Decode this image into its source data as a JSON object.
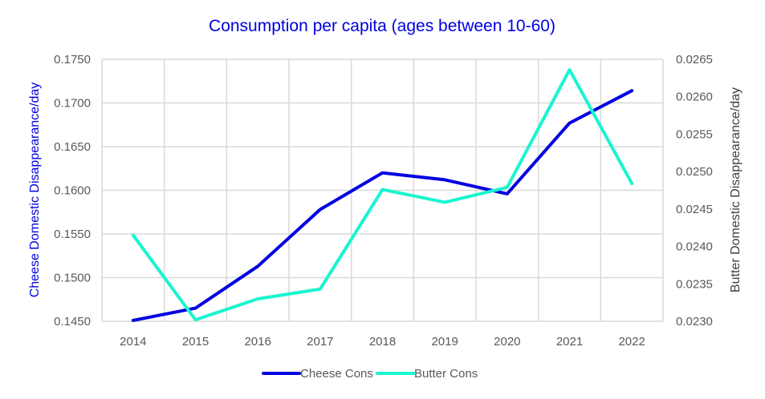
{
  "chart_data": {
    "type": "line",
    "title": "Consumption per capita (ages between 10-60)",
    "x": [
      "2014",
      "2015",
      "2016",
      "2017",
      "2018",
      "2019",
      "2020",
      "2021",
      "2022"
    ],
    "ylabel": "Cheese Domestic Disappearance/day",
    "y2label": "Butter Domestic Disappearance/day",
    "ylim": [
      0.145,
      0.175
    ],
    "y2lim": [
      0.023,
      0.0265
    ],
    "yticks": [
      "0.1450",
      "0.1500",
      "0.1550",
      "0.1600",
      "0.1650",
      "0.1700",
      "0.1750"
    ],
    "y2ticks": [
      "0.0230",
      "0.0235",
      "0.0240",
      "0.0245",
      "0.0250",
      "0.0255",
      "0.0260",
      "0.0265"
    ],
    "grid": true,
    "legend_position": "bottom",
    "series": [
      {
        "name": "Cheese Cons",
        "axis": "left",
        "color": "#0000e0",
        "values": [
          0.1451,
          0.1465,
          0.1513,
          0.1578,
          0.162,
          0.1612,
          0.1596,
          0.1677,
          0.1714
        ]
      },
      {
        "name": "Butter Cons",
        "axis": "right",
        "color": "#19f5d0",
        "values": [
          0.02415,
          0.02302,
          0.0233,
          0.02343,
          0.02476,
          0.02459,
          0.02479,
          0.02636,
          0.02484
        ]
      }
    ]
  }
}
